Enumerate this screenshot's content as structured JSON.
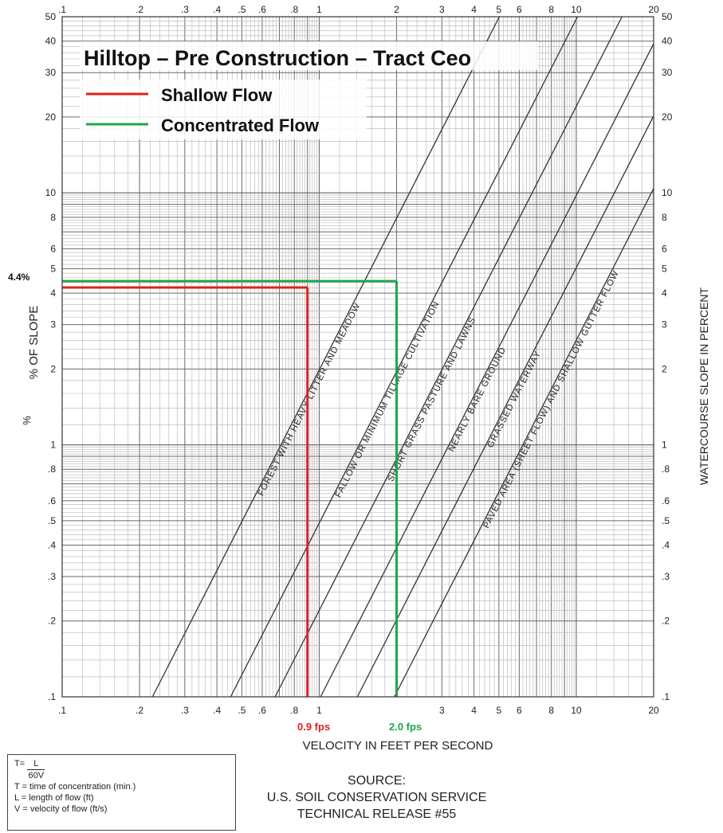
{
  "title": "Hilltop – Pre Construction – Tract Ceo",
  "legend": [
    {
      "name": "Shallow Flow",
      "color": "#e02020"
    },
    {
      "name": "Concentrated Flow",
      "color": "#1fa64a"
    }
  ],
  "chart_data": {
    "type": "line",
    "scale": "log-log",
    "xlabel": "VELOCITY IN FEET PER SECOND",
    "ylabel_left": "% OF SLOPE",
    "ylabel_right": "WATERCOURSE SLOPE IN PERCENT",
    "xlim": [
      0.1,
      20
    ],
    "ylim": [
      0.1,
      50
    ],
    "x_ticks": [
      ".1",
      ".2",
      ".3",
      ".4",
      ".5",
      ".6",
      ".8",
      "1",
      "2",
      "3",
      "4",
      "5",
      "6",
      "8",
      "10",
      "20"
    ],
    "x_ticks_bottom": [
      ".1",
      ".2",
      ".3",
      ".4",
      ".5",
      ".6",
      ".8",
      "1",
      "3",
      "4",
      "5",
      "6",
      "8",
      "10",
      "20"
    ],
    "y_ticks": [
      "50",
      "40",
      "30",
      "20",
      "10",
      "8",
      "6",
      "5",
      "4",
      "3",
      "2",
      "1",
      ".8",
      ".6",
      ".5",
      ".4",
      ".3",
      ".2",
      ".1"
    ],
    "grid": true,
    "curves": [
      {
        "label": "FOREST WITH HEAVY LITTER AND MEADOW",
        "k": 0.71
      },
      {
        "label": "FALLOW OR MINIMUM TILLAGE CULTIVATION",
        "k": 1.43
      },
      {
        "label": "SHORT GRASS PASTURE AND LAWNS",
        "k": 2.13
      },
      {
        "label": "NEARLY BARE GROUND",
        "k": 3.2
      },
      {
        "label": "GRASSED WATERWAY",
        "k": 4.45
      },
      {
        "label": "PAVED AREA (SHEET FLOW) AND SHALLOW GUTTER FLOW",
        "k": 6.2
      }
    ],
    "readings": [
      {
        "series": "Shallow Flow",
        "slope_percent": 4.4,
        "velocity_fps": 0.9,
        "slope_label": "4.4%",
        "velocity_label": "0.9 fps"
      },
      {
        "series": "Concentrated Flow",
        "slope_percent": 4.4,
        "velocity_fps": 2.0,
        "velocity_label": "2.0 fps"
      }
    ]
  },
  "formula": {
    "t_eq": "T=",
    "numerator": "L",
    "denominator": "60V",
    "defs": [
      "T = time of concentration (min.)",
      "L = length of flow (ft)",
      "V = velocity of flow (ft/s)"
    ]
  },
  "source": [
    "SOURCE:",
    "U.S. SOIL CONSERVATION SERVICE",
    "TECHNICAL RELEASE #55"
  ]
}
